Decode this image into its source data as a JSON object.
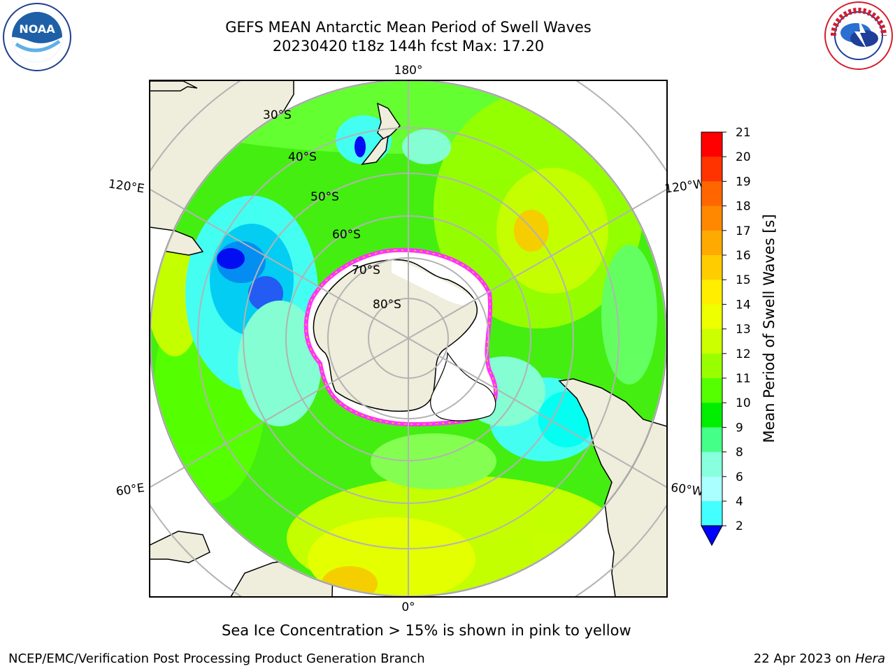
{
  "header": {
    "title_line1": "GEFS MEAN Antarctic Mean Period of Swell Waves",
    "title_line2": "20230420 t18z 144h fcst   Max: 17.20"
  },
  "logos": {
    "left": {
      "icon": "noaa-logo",
      "text": "NOAA"
    },
    "right": {
      "icon": "nws-logo",
      "text": "NATIONAL WEATHER SERVICE"
    }
  },
  "map": {
    "projection": "south-polar-stereographic",
    "longitude_labels": {
      "top": "180°",
      "bottom": "0°",
      "upper_left": "120°E",
      "upper_right": "120°W",
      "lower_left": "60°E",
      "lower_right": "60°W"
    },
    "latitude_labels": [
      "30°S",
      "40°S",
      "50°S",
      "60°S",
      "70°S",
      "80°S"
    ],
    "sea_ice_color_range": [
      "#ff33ff",
      "#ffcc00"
    ]
  },
  "colorbar": {
    "label": "Mean Period of Swell Waves [s]",
    "ticks": [
      "21",
      "20",
      "19",
      "18",
      "17",
      "16",
      "15",
      "14",
      "13",
      "12",
      "11",
      "10",
      "9",
      "8",
      "6",
      "4",
      "2"
    ],
    "colors": [
      "#ff0000",
      "#ff3300",
      "#ff6600",
      "#ff8800",
      "#ffaa00",
      "#ffcc00",
      "#ffee00",
      "#eeff00",
      "#ccff00",
      "#99ff00",
      "#55ff00",
      "#00ee00",
      "#44ff88",
      "#88ffdd",
      "#aaffff",
      "#44ffff",
      "#00ffff",
      "#0088ff",
      "#0000ff"
    ],
    "extend": "min"
  },
  "captions": {
    "ice": "Sea Ice Concentration > 15% is shown in pink to yellow"
  },
  "footer": {
    "left": "NCEP/EMC/Verification Post Processing Product Generation Branch",
    "right_text": "22 Apr 2023 on ",
    "right_italic": "Hera"
  }
}
